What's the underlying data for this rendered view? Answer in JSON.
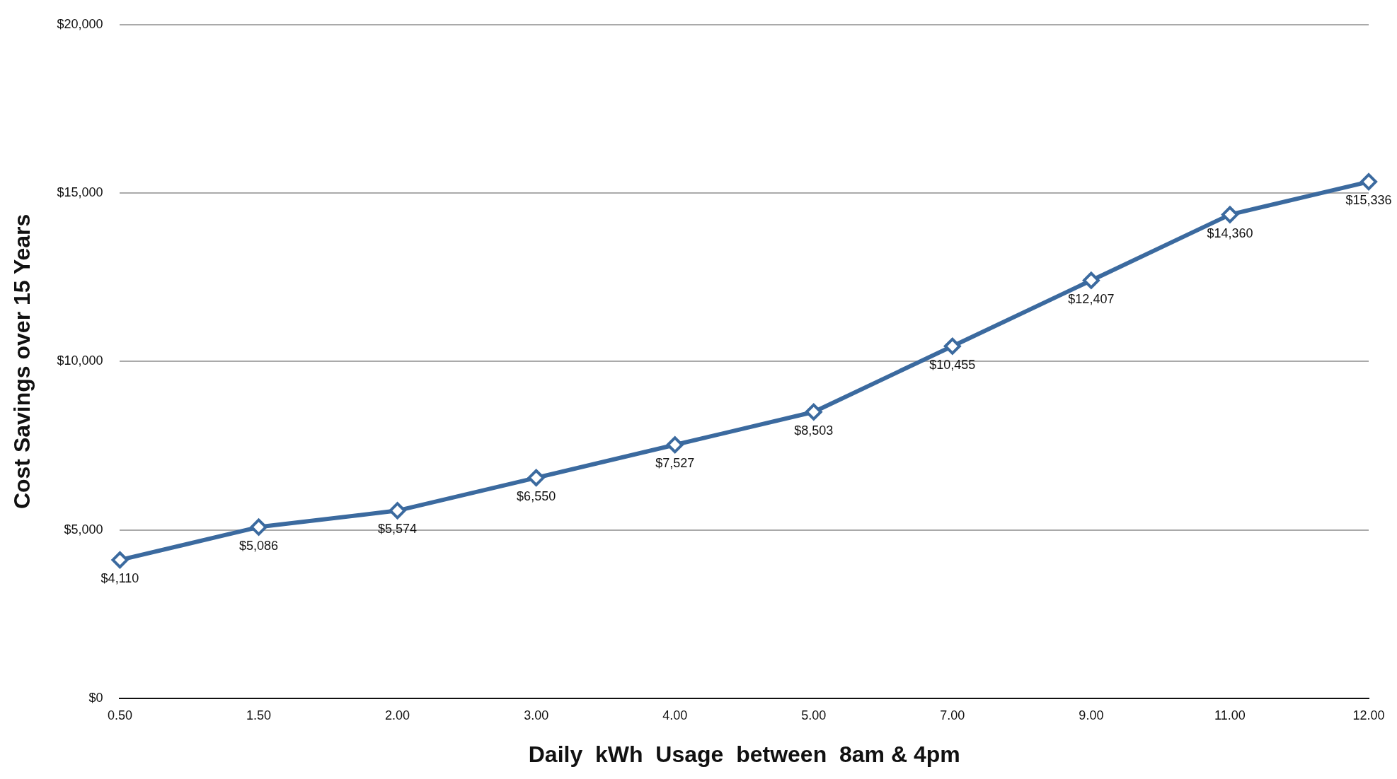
{
  "chart_data": {
    "type": "line",
    "xlabel": "Daily  kWh  Usage  between  8am & 4pm",
    "ylabel": "Cost Savings over 15 Years",
    "categories": [
      "0.50",
      "1.50",
      "2.00",
      "3.00",
      "4.00",
      "5.00",
      "7.00",
      "9.00",
      "11.00",
      "12.00"
    ],
    "series": [
      {
        "color": "#3b6a9f",
        "values": [
          4110,
          5086,
          5574,
          6550,
          7527,
          8503,
          10455,
          12407,
          14360,
          15336
        ],
        "value_labels": [
          "$4,110",
          "$5,086",
          "$5,574",
          "$6,550",
          "$7,527",
          "$8,503",
          "$10,455",
          "$12,407",
          "$14,360",
          "$15,336"
        ]
      }
    ],
    "ylim": [
      0,
      20000
    ],
    "yticks": [
      {
        "value": 0,
        "label": "$0"
      },
      {
        "value": 5000,
        "label": "$5,000"
      },
      {
        "value": 10000,
        "label": "$10,000"
      },
      {
        "value": 15000,
        "label": "$15,000"
      },
      {
        "value": 20000,
        "label": "$20,000"
      }
    ],
    "grid": "y",
    "marker": "diamond",
    "line_style": "solid",
    "legend": false
  }
}
